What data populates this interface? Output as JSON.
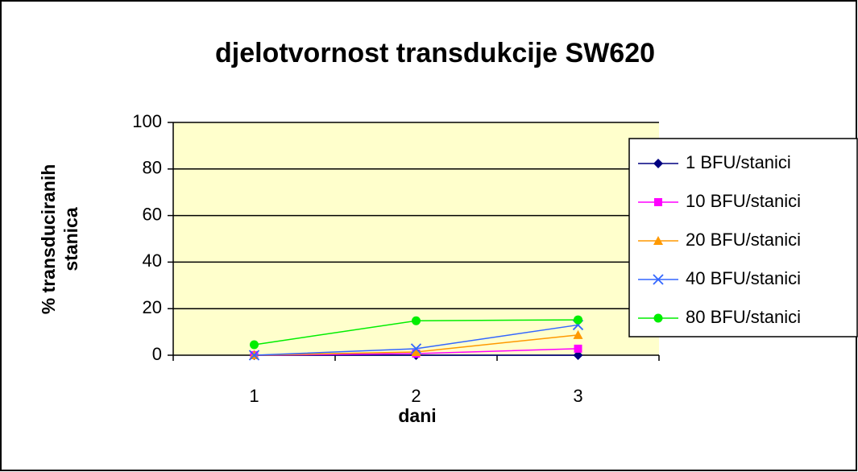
{
  "chart_data": {
    "type": "line",
    "title": "djelotvornost transdukcije SW620",
    "x_label": "dani",
    "y_label": [
      "% transduciranih",
      "stanica"
    ],
    "categories": [
      "1",
      "2",
      "3"
    ],
    "series": [
      {
        "name": "1 BFU/stanici",
        "color": "#000080",
        "marker": "diamond",
        "values": [
          0,
          0,
          0
        ]
      },
      {
        "name": "10 BFU/stanici",
        "color": "#ff00ff",
        "marker": "square",
        "values": [
          0,
          0.7,
          2.8
        ]
      },
      {
        "name": "20 BFU/stanici",
        "color": "#ff9900",
        "marker": "triangle",
        "values": [
          0,
          1.4,
          8.7
        ]
      },
      {
        "name": "40 BFU/stanici",
        "color": "#3366ff",
        "marker": "cross",
        "values": [
          0,
          2.8,
          13
        ]
      },
      {
        "name": "80 BFU/stanici",
        "color": "#00ee00",
        "marker": "circle",
        "values": [
          4.5,
          14.8,
          15.2
        ]
      }
    ],
    "ylim": [
      0,
      100
    ],
    "yticks": [
      0,
      20,
      40,
      60,
      80,
      100
    ],
    "grid": true,
    "plot_background": "#ffffcc",
    "legend": "right"
  }
}
